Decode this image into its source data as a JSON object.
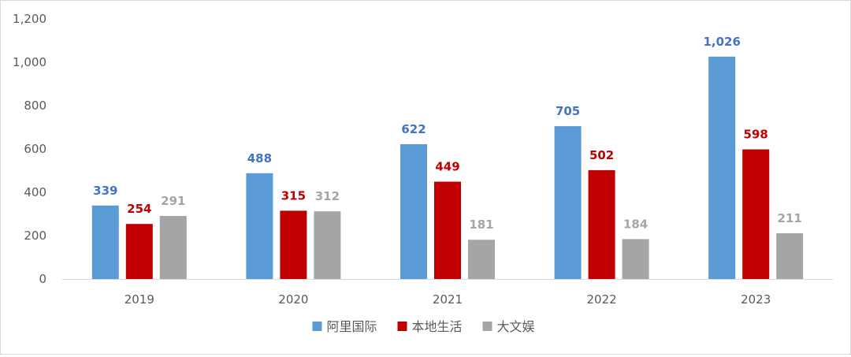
{
  "chart_data": {
    "type": "bar",
    "categories": [
      "2019",
      "2020",
      "2021",
      "2022",
      "2023"
    ],
    "series": [
      {
        "name": "阿里国际",
        "values": [
          339,
          488,
          622,
          705,
          1026
        ],
        "color": "#5b9bd5",
        "label_color": "#4472c4"
      },
      {
        "name": "本地生活",
        "values": [
          254,
          315,
          449,
          502,
          598
        ],
        "color": "#c00000",
        "label_color": "#c00000"
      },
      {
        "name": "大文娱",
        "values": [
          291,
          312,
          181,
          184,
          211
        ],
        "color": "#a5a5a5",
        "label_color": "#a5a5a5"
      }
    ],
    "ylim": [
      0,
      1200
    ],
    "yticks": [
      0,
      200,
      400,
      600,
      800,
      1000,
      1200
    ],
    "ytick_labels": [
      "0",
      "200",
      "400",
      "600",
      "800",
      "1,000",
      "1,200"
    ],
    "title": "",
    "xlabel": "",
    "ylabel": "",
    "grid": false,
    "legend_position": "bottom"
  }
}
